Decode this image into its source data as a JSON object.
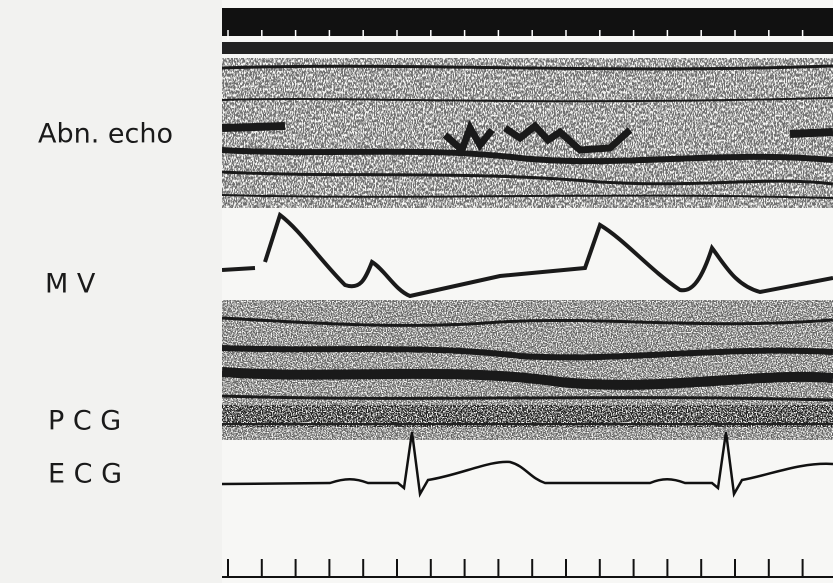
{
  "labels": {
    "abnormal_echo": "Abn. echo",
    "mitral_valve": "M V",
    "pcg": "P C G",
    "ecg": "E C G"
  }
}
